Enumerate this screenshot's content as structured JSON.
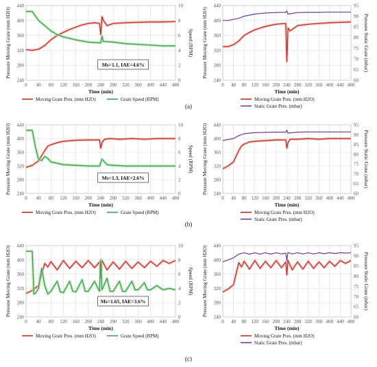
{
  "colors": {
    "moving": "#b22a1a",
    "moving_band": "#f4b6b6",
    "speed": "#3a9a4a",
    "speed_band": "#a8e0a8",
    "static": "#6a3a9a",
    "grid": "#dcdcdc",
    "axis_text": "#555555",
    "text": "#111111",
    "annot_border": "#333333"
  },
  "row_labels": [
    "(a)",
    "(b)",
    "(c)"
  ],
  "chart_data": [
    {
      "type": "line",
      "row": 0,
      "col": 0,
      "xlabel": "Time (min)",
      "ylabel": "Pressure Moving Grate (mm H2O)",
      "y2label": "Speed (RPM)",
      "xticks": [
        0,
        40,
        80,
        120,
        160,
        200,
        240,
        280,
        320,
        360,
        400,
        440,
        480
      ],
      "xlim": [
        0,
        480
      ],
      "ylim": [
        240,
        440
      ],
      "yticks": [
        240,
        280,
        320,
        360,
        400,
        440
      ],
      "y2lim": [
        0,
        10
      ],
      "y2ticks": [
        0,
        2,
        4,
        6,
        8,
        10
      ],
      "annotation": "Ms=1.1, IAE=4.6%",
      "grid": true,
      "legend": "bottom",
      "series": [
        {
          "name": "Moving Grate Pres. (mm H2O)",
          "axis": "left",
          "color_key": "moving",
          "x": [
            0,
            20,
            40,
            60,
            80,
            100,
            120,
            140,
            160,
            180,
            200,
            220,
            236,
            240,
            244,
            250,
            260,
            280,
            320,
            360,
            400,
            440,
            480
          ],
          "y": [
            322,
            320,
            323,
            333,
            348,
            360,
            368,
            376,
            382,
            388,
            392,
            394,
            392,
            362,
            410,
            398,
            386,
            392,
            394,
            395,
            396,
            396,
            397
          ]
        },
        {
          "name": "Grate Speed (RPM)",
          "axis": "right",
          "color_key": "speed",
          "x": [
            0,
            20,
            30,
            40,
            60,
            80,
            100,
            120,
            160,
            200,
            240,
            244,
            248,
            280,
            320,
            360,
            400,
            440,
            480
          ],
          "y": [
            9.2,
            9.2,
            8.6,
            8.0,
            7.3,
            6.6,
            6.1,
            5.8,
            5.4,
            5.1,
            5.0,
            5.9,
            5.2,
            5.1,
            4.9,
            4.8,
            4.7,
            4.6,
            4.6
          ]
        }
      ]
    },
    {
      "type": "line",
      "row": 0,
      "col": 1,
      "xlabel": "Time (min)",
      "ylabel": "Pressure Moving Grate (mm H2O)",
      "y2label": "Pressure Static Grate (mbar)",
      "xticks": [
        0,
        40,
        80,
        120,
        160,
        200,
        240,
        280,
        320,
        360,
        400,
        440,
        480
      ],
      "xlim": [
        0,
        480
      ],
      "ylim": [
        240,
        440
      ],
      "yticks": [
        240,
        280,
        320,
        360,
        400,
        440
      ],
      "y2lim": [
        60,
        95
      ],
      "y2ticks": [
        60,
        65,
        70,
        75,
        80,
        85,
        90,
        95
      ],
      "grid": true,
      "legend": "bottom",
      "series": [
        {
          "name": "Moving Grate Pres. (mm H2O)",
          "axis": "left",
          "color_key": "moving",
          "x": [
            0,
            20,
            40,
            60,
            80,
            100,
            120,
            160,
            200,
            236,
            240,
            244,
            252,
            280,
            320,
            360,
            400,
            440,
            480
          ],
          "y": [
            330,
            330,
            335,
            345,
            360,
            368,
            375,
            384,
            390,
            392,
            290,
            380,
            372,
            386,
            390,
            392,
            394,
            395,
            396
          ]
        },
        {
          "name": "Static Grate Pres. (mbar)",
          "axis": "right",
          "color_key": "static",
          "x": [
            0,
            20,
            40,
            60,
            80,
            120,
            160,
            200,
            236,
            240,
            244,
            280,
            320,
            360,
            400,
            440,
            480
          ],
          "y": [
            88,
            88,
            88.5,
            89,
            90,
            91,
            91.5,
            91.7,
            91.8,
            92.5,
            91,
            91.7,
            91.8,
            91.8,
            91.9,
            91.9,
            91.9
          ]
        }
      ]
    },
    {
      "type": "line",
      "row": 1,
      "col": 0,
      "xlabel": "Time (min)",
      "ylabel": "Pressure Moving Grate (mm H2O)",
      "y2label": "Speed (RPM)",
      "xticks": [
        0,
        40,
        80,
        120,
        160,
        200,
        240,
        280,
        320,
        360,
        400,
        440,
        480
      ],
      "xlim": [
        0,
        480
      ],
      "ylim": [
        240,
        440
      ],
      "yticks": [
        240,
        280,
        320,
        360,
        400,
        440
      ],
      "y2lim": [
        0,
        10
      ],
      "y2ticks": [
        0,
        2,
        4,
        6,
        8,
        10
      ],
      "annotation": "Ms=1.3, IAE=2.6%",
      "grid": true,
      "legend": "bottom",
      "series": [
        {
          "name": "Moving Grate Pres. (mm H2O)",
          "axis": "left",
          "color_key": "moving",
          "x": [
            0,
            20,
            40,
            60,
            70,
            80,
            100,
            120,
            160,
            200,
            236,
            240,
            244,
            252,
            270,
            300,
            340,
            380,
            420,
            460,
            480
          ],
          "y": [
            316,
            322,
            335,
            365,
            378,
            382,
            388,
            392,
            395,
            396,
            396,
            372,
            388,
            398,
            400,
            398,
            400,
            398,
            400,
            400,
            400
          ]
        },
        {
          "name": "Grate Speed (RPM)",
          "axis": "right",
          "color_key": "speed",
          "x": [
            0,
            20,
            30,
            40,
            50,
            60,
            70,
            80,
            100,
            120,
            160,
            200,
            236,
            244,
            250,
            260,
            280,
            320,
            360,
            400,
            440,
            480
          ],
          "y": [
            9.2,
            9.2,
            6.8,
            5.0,
            4.8,
            5.4,
            5.1,
            4.6,
            4.4,
            4.2,
            4.1,
            4.0,
            4.0,
            5.0,
            4.7,
            4.2,
            4.1,
            4.0,
            4.0,
            4.0,
            4.0,
            4.0
          ]
        }
      ]
    },
    {
      "type": "line",
      "row": 1,
      "col": 1,
      "xlabel": "Time (min)",
      "ylabel": "Pressure Moving Grate (mm H2O)",
      "y2label": "Pressure Static Grate (mbar)",
      "xticks": [
        0,
        40,
        80,
        120,
        160,
        200,
        240,
        280,
        320,
        360,
        400,
        440,
        480
      ],
      "xlim": [
        0,
        480
      ],
      "ylim": [
        240,
        440
      ],
      "yticks": [
        240,
        280,
        320,
        360,
        400,
        440
      ],
      "y2lim": [
        60,
        95
      ],
      "y2ticks": [
        60,
        65,
        70,
        75,
        80,
        85,
        90,
        95
      ],
      "grid": true,
      "legend": "bottom",
      "series": [
        {
          "name": "Moving Grate Pres. (mm H2O)",
          "axis": "left",
          "color_key": "moving",
          "x": [
            0,
            20,
            40,
            60,
            70,
            80,
            100,
            120,
            160,
            200,
            236,
            240,
            244,
            252,
            280,
            320,
            360,
            400,
            440,
            480
          ],
          "y": [
            312,
            320,
            332,
            365,
            378,
            384,
            390,
            392,
            394,
            396,
            396,
            372,
            388,
            398,
            398,
            400,
            398,
            400,
            400,
            400
          ]
        },
        {
          "name": "Static Grate Pres. (mbar)",
          "axis": "right",
          "color_key": "static",
          "x": [
            0,
            20,
            40,
            60,
            80,
            120,
            160,
            200,
            236,
            240,
            244,
            280,
            320,
            360,
            400,
            440,
            480
          ],
          "y": [
            87,
            87.5,
            88,
            89.5,
            90.5,
            91,
            91.2,
            91.3,
            91.3,
            92.3,
            90.8,
            91.3,
            91.4,
            91.4,
            91.4,
            91.4,
            91.4
          ]
        }
      ]
    },
    {
      "type": "line",
      "row": 2,
      "col": 0,
      "xlabel": "Time (min)",
      "ylabel": "Pressure Moving Grate (mm H2O)",
      "y2label": "Speed (RPM)",
      "xticks": [
        0,
        40,
        80,
        120,
        160,
        200,
        240,
        280,
        320,
        360,
        400,
        440,
        480
      ],
      "xlim": [
        0,
        480
      ],
      "ylim": [
        240,
        440
      ],
      "yticks": [
        240,
        280,
        320,
        360,
        400,
        440
      ],
      "y2lim": [
        0,
        10
      ],
      "y2ticks": [
        0,
        2,
        4,
        6,
        8,
        10
      ],
      "annotation": "Ms=1.65, IAE=3.6%",
      "grid": true,
      "legend": "bottom",
      "series": [
        {
          "name": "Moving Grate Pres. (mm H2O)",
          "axis": "left",
          "color_key": "moving",
          "x": [
            0,
            20,
            40,
            50,
            60,
            70,
            80,
            100,
            120,
            140,
            160,
            180,
            200,
            220,
            236,
            240,
            244,
            260,
            280,
            300,
            320,
            340,
            360,
            380,
            400,
            420,
            440,
            460,
            480
          ],
          "y": [
            306,
            314,
            328,
            360,
            390,
            380,
            395,
            372,
            398,
            376,
            396,
            378,
            398,
            378,
            394,
            350,
            398,
            372,
            394,
            374,
            396,
            376,
            394,
            378,
            396,
            382,
            398,
            390,
            398
          ]
        },
        {
          "name": "Grate Speed (RPM)",
          "axis": "right",
          "color_key": "speed",
          "x": [
            0,
            20,
            25,
            30,
            40,
            50,
            60,
            70,
            80,
            100,
            110,
            120,
            140,
            150,
            160,
            180,
            190,
            200,
            220,
            236,
            240,
            244,
            260,
            270,
            280,
            300,
            310,
            320,
            340,
            350,
            360,
            380,
            390,
            400,
            420,
            440,
            460,
            480
          ],
          "y": [
            9.2,
            9.2,
            3.2,
            3.3,
            4.0,
            6.8,
            4.4,
            3.2,
            3.6,
            5.0,
            3.5,
            3.4,
            5.0,
            3.6,
            3.5,
            5.2,
            3.6,
            3.6,
            5.0,
            3.6,
            8.0,
            3.8,
            5.4,
            3.6,
            3.6,
            5.0,
            3.6,
            3.6,
            5.0,
            3.8,
            3.8,
            4.8,
            3.8,
            3.8,
            4.4,
            3.8,
            4.0,
            3.8
          ]
        }
      ]
    },
    {
      "type": "line",
      "row": 2,
      "col": 1,
      "xlabel": "Time (min)",
      "ylabel": "Pressure Moving Grate (mm H2O)",
      "y2label": "Pressure Static Grate (mbar)",
      "xticks": [
        0,
        40,
        80,
        120,
        160,
        200,
        240,
        280,
        320,
        360,
        400,
        440,
        480
      ],
      "xlim": [
        0,
        480
      ],
      "ylim": [
        240,
        440
      ],
      "yticks": [
        240,
        280,
        320,
        360,
        400,
        440
      ],
      "y2lim": [
        60,
        95
      ],
      "y2ticks": [
        60,
        65,
        70,
        75,
        80,
        85,
        90,
        95
      ],
      "grid": true,
      "legend": "bottom",
      "series": [
        {
          "name": "Moving Grate Pres. (mm H2O)",
          "axis": "left",
          "color_key": "moving",
          "x": [
            0,
            20,
            40,
            50,
            60,
            70,
            80,
            100,
            120,
            140,
            160,
            180,
            200,
            220,
            236,
            240,
            244,
            260,
            280,
            300,
            320,
            340,
            360,
            380,
            400,
            420,
            440,
            460,
            480
          ],
          "y": [
            310,
            318,
            330,
            362,
            392,
            380,
            396,
            374,
            398,
            376,
            396,
            378,
            398,
            378,
            394,
            358,
            398,
            372,
            394,
            374,
            396,
            376,
            394,
            378,
            396,
            382,
            398,
            390,
            398
          ]
        },
        {
          "name": "Static Grate Pres. (mbar)",
          "axis": "right",
          "color_key": "static",
          "x": [
            0,
            20,
            40,
            60,
            80,
            100,
            120,
            140,
            160,
            180,
            200,
            220,
            236,
            240,
            244,
            260,
            280,
            300,
            320,
            340,
            360,
            380,
            400,
            420,
            440,
            460,
            480
          ],
          "y": [
            87,
            88,
            89,
            90.8,
            91.5,
            90.8,
            91.5,
            90.8,
            91.5,
            90.8,
            91.5,
            90.9,
            91.3,
            87.5,
            91.6,
            90.9,
            91.5,
            90.9,
            91.5,
            90.9,
            91.5,
            91.0,
            91.5,
            91.1,
            91.5,
            91.3,
            91.5
          ]
        }
      ]
    }
  ]
}
